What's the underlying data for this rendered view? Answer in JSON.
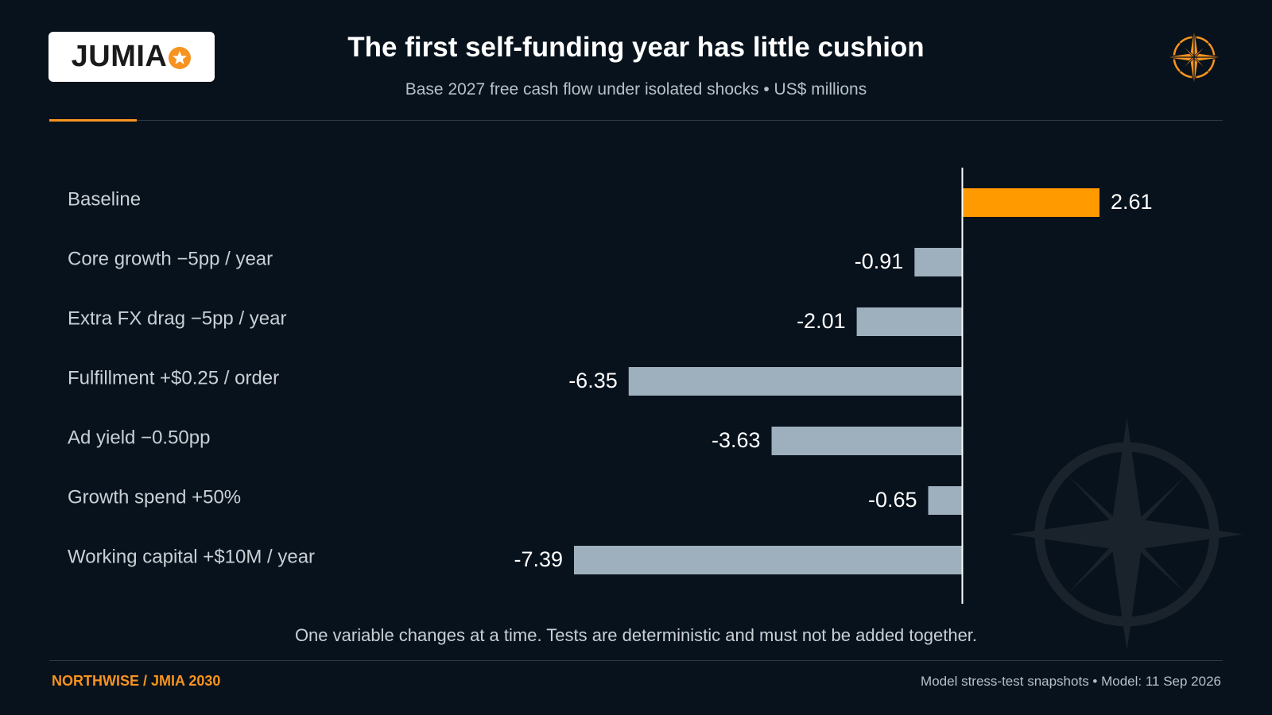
{
  "brand": {
    "logo_text": "JUMIA",
    "logo_icon": "star-icon",
    "compass_icon": "compass-icon",
    "colors": {
      "accent": "#f7931e",
      "background": "#08121c",
      "negative_bar": "#9eafbd",
      "baseline_bar": "#ff9a00"
    }
  },
  "header": {
    "title": "The first self-funding year has little cushion",
    "subtitle": "Base 2027 free cash flow under isolated shocks • US$ millions"
  },
  "chart_data": {
    "type": "bar",
    "orientation": "horizontal",
    "categories": [
      "Baseline",
      "Core growth −5pp / year",
      "Extra FX drag −5pp / year",
      "Fulfillment +$0.25 / order",
      "Ad yield −0.50pp",
      "Growth spend +50%",
      "Working capital +$10M / year"
    ],
    "values": [
      2.61,
      -0.91,
      -2.01,
      -6.35,
      -3.63,
      -0.65,
      -7.39
    ],
    "value_labels": [
      "2.61",
      "-0.91",
      "-2.01",
      "-6.35",
      "-3.63",
      "-0.65",
      "-7.39"
    ],
    "xlim": [
      -7.39,
      2.61
    ],
    "zero_line": true,
    "grid": false,
    "legend": "none"
  },
  "footnote": "One variable changes at a time. Tests are deterministic and must not be added together.",
  "footer": {
    "left": "NORTHWISE / JMIA 2030",
    "right": "Model stress-test snapshots • Model: 11 Sep 2026"
  }
}
